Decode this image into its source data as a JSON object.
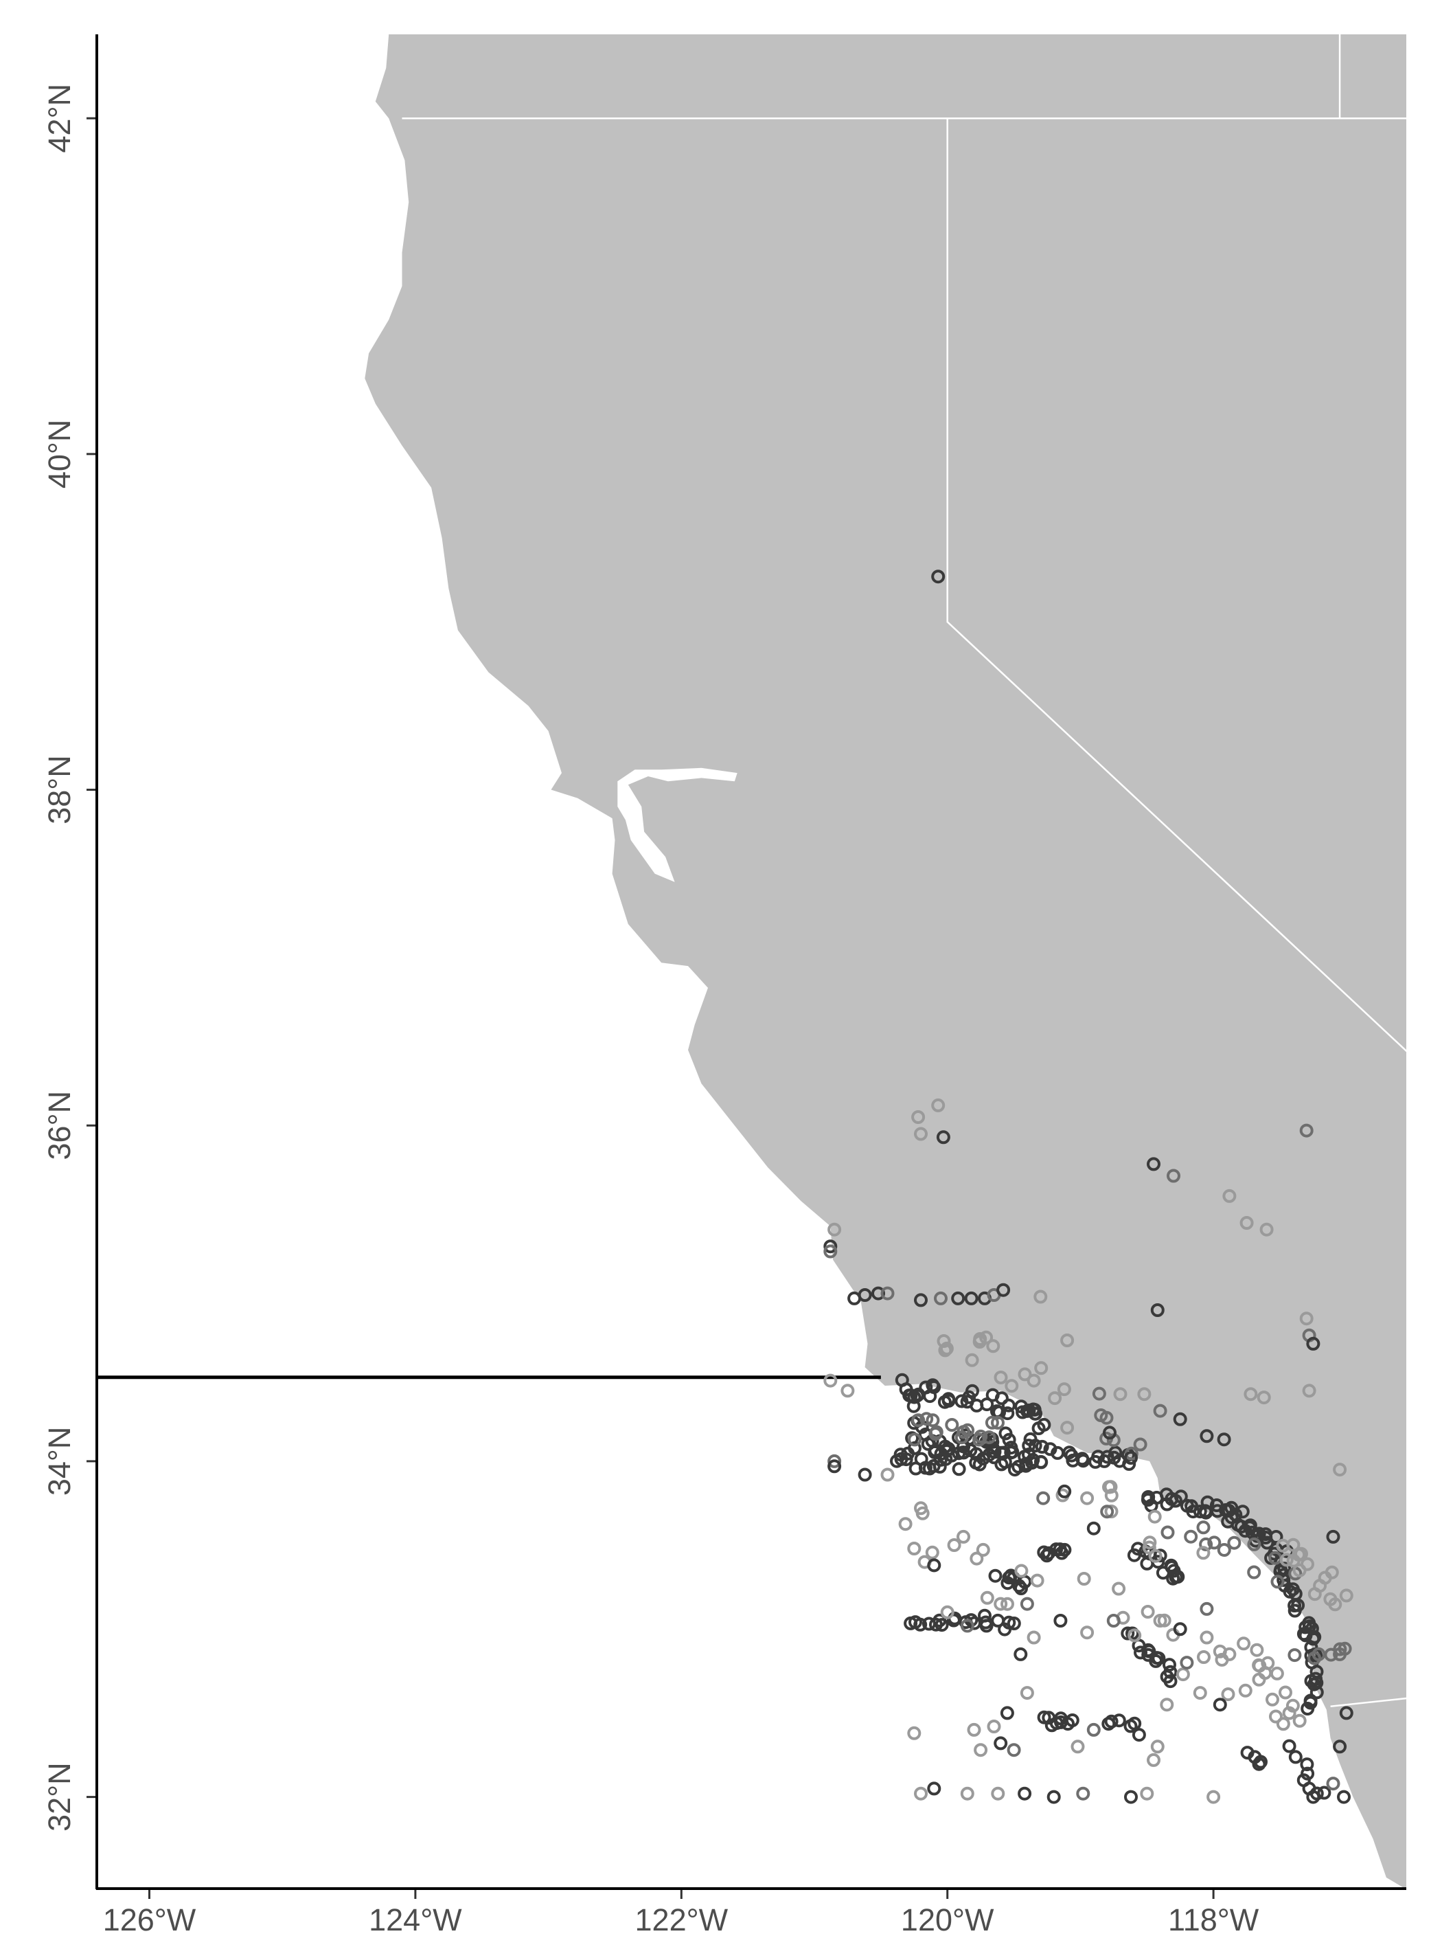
{
  "map": {
    "projection": "geographic (lon/lat)",
    "xlim": [
      -126.4,
      -116.55
    ],
    "ylim": [
      31.45,
      42.5
    ],
    "land_color": "#c0c0c0",
    "ocean_color": "#ffffff",
    "border_color": "#ffffff",
    "point_colors": [
      "#3a3a3a",
      "#6e6e6e",
      "#9a9a9a"
    ],
    "x_ticks": [
      {
        "value": -126,
        "label": "126°W"
      },
      {
        "value": -124,
        "label": "124°W"
      },
      {
        "value": -122,
        "label": "122°W"
      },
      {
        "value": -120,
        "label": "120°W"
      },
      {
        "value": -118,
        "label": "118°W"
      }
    ],
    "y_ticks": [
      {
        "value": 32,
        "label": "32°N"
      },
      {
        "value": 34,
        "label": "34°N"
      },
      {
        "value": 36,
        "label": "36°N"
      },
      {
        "value": 38,
        "label": "38°N"
      },
      {
        "value": 40,
        "label": "40°N"
      },
      {
        "value": 42,
        "label": "42°N"
      }
    ],
    "reference_line": {
      "lat": 34.5,
      "lon_range": [
        -126.4,
        -120.5
      ]
    },
    "points": [
      {
        "lon": -120.07,
        "lat": 39.27,
        "tone": 0
      },
      {
        "lon": -120.07,
        "lat": 36.12,
        "tone": 2
      },
      {
        "lon": -120.22,
        "lat": 36.05,
        "tone": 2
      },
      {
        "lon": -120.2,
        "lat": 35.95,
        "tone": 2
      },
      {
        "lon": -120.03,
        "lat": 35.93,
        "tone": 0
      },
      {
        "lon": -118.45,
        "lat": 35.77,
        "tone": 0
      },
      {
        "lon": -118.3,
        "lat": 35.7,
        "tone": 1
      },
      {
        "lon": -117.88,
        "lat": 35.58,
        "tone": 2
      },
      {
        "lon": -117.75,
        "lat": 35.42,
        "tone": 2
      },
      {
        "lon": -117.6,
        "lat": 35.38,
        "tone": 2
      },
      {
        "lon": -117.3,
        "lat": 35.97,
        "tone": 1
      },
      {
        "lon": -120.85,
        "lat": 35.38,
        "tone": 2
      },
      {
        "lon": -120.88,
        "lat": 35.28,
        "tone": 0
      },
      {
        "lon": -120.88,
        "lat": 35.25,
        "tone": 1
      },
      {
        "lon": -120.7,
        "lat": 34.97,
        "tone": 0
      },
      {
        "lon": -120.62,
        "lat": 34.99,
        "tone": 0
      },
      {
        "lon": -120.52,
        "lat": 35.0,
        "tone": 0
      },
      {
        "lon": -120.45,
        "lat": 35.0,
        "tone": 1
      },
      {
        "lon": -120.2,
        "lat": 34.96,
        "tone": 0
      },
      {
        "lon": -120.05,
        "lat": 34.97,
        "tone": 1
      },
      {
        "lon": -119.92,
        "lat": 34.97,
        "tone": 0
      },
      {
        "lon": -119.82,
        "lat": 34.97,
        "tone": 0
      },
      {
        "lon": -119.72,
        "lat": 34.97,
        "tone": 0
      },
      {
        "lon": -119.65,
        "lat": 34.99,
        "tone": 1
      },
      {
        "lon": -119.58,
        "lat": 35.02,
        "tone": 0
      },
      {
        "lon": -119.3,
        "lat": 34.98,
        "tone": 2
      },
      {
        "lon": -119.1,
        "lat": 34.72,
        "tone": 2
      },
      {
        "lon": -118.42,
        "lat": 34.9,
        "tone": 0
      },
      {
        "lon": -117.3,
        "lat": 34.85,
        "tone": 2
      },
      {
        "lon": -117.28,
        "lat": 34.75,
        "tone": 1
      },
      {
        "lon": -117.25,
        "lat": 34.7,
        "tone": 0
      },
      {
        "lon": -117.28,
        "lat": 34.42,
        "tone": 2
      },
      {
        "lon": -120.88,
        "lat": 34.48,
        "tone": 2
      },
      {
        "lon": -120.75,
        "lat": 34.42,
        "tone": 2
      },
      {
        "lon": -118.78,
        "lat": 34.17,
        "tone": 0
      },
      {
        "lon": -118.55,
        "lat": 34.1,
        "tone": 1
      },
      {
        "lon": -118.4,
        "lat": 34.3,
        "tone": 1
      },
      {
        "lon": -118.25,
        "lat": 34.25,
        "tone": 0
      },
      {
        "lon": -118.05,
        "lat": 34.15,
        "tone": 0
      },
      {
        "lon": -117.92,
        "lat": 34.13,
        "tone": 0
      },
      {
        "lon": -118.7,
        "lat": 34.4,
        "tone": 2
      },
      {
        "lon": -118.52,
        "lat": 34.4,
        "tone": 2
      },
      {
        "lon": -117.72,
        "lat": 34.4,
        "tone": 2
      },
      {
        "lon": -117.62,
        "lat": 34.38,
        "tone": 2
      },
      {
        "lon": -120.85,
        "lat": 34.0,
        "tone": 1
      },
      {
        "lon": -120.85,
        "lat": 33.97,
        "tone": 0
      },
      {
        "lon": -120.62,
        "lat": 33.92,
        "tone": 0
      },
      {
        "lon": -120.45,
        "lat": 33.92,
        "tone": 2
      },
      {
        "lon": -120.2,
        "lat": 33.72,
        "tone": 2
      },
      {
        "lon": -120.25,
        "lat": 33.48,
        "tone": 2
      },
      {
        "lon": -120.1,
        "lat": 33.38,
        "tone": 0
      },
      {
        "lon": -119.88,
        "lat": 33.55,
        "tone": 2
      },
      {
        "lon": -119.78,
        "lat": 33.42,
        "tone": 2
      },
      {
        "lon": -119.28,
        "lat": 33.78,
        "tone": 1
      },
      {
        "lon": -119.12,
        "lat": 33.82,
        "tone": 0
      },
      {
        "lon": -118.95,
        "lat": 33.78,
        "tone": 2
      },
      {
        "lon": -118.8,
        "lat": 33.7,
        "tone": 1
      },
      {
        "lon": -118.9,
        "lat": 33.6,
        "tone": 0
      },
      {
        "lon": -120.0,
        "lat": 33.1,
        "tone": 2
      },
      {
        "lon": -119.85,
        "lat": 33.02,
        "tone": 1
      },
      {
        "lon": -119.72,
        "lat": 33.08,
        "tone": 0
      },
      {
        "lon": -119.6,
        "lat": 33.15,
        "tone": 2
      },
      {
        "lon": -119.4,
        "lat": 33.15,
        "tone": 1
      },
      {
        "lon": -119.35,
        "lat": 32.95,
        "tone": 2
      },
      {
        "lon": -119.15,
        "lat": 33.05,
        "tone": 0
      },
      {
        "lon": -118.95,
        "lat": 32.98,
        "tone": 2
      },
      {
        "lon": -118.75,
        "lat": 33.05,
        "tone": 1
      },
      {
        "lon": -118.4,
        "lat": 33.05,
        "tone": 2
      },
      {
        "lon": -118.25,
        "lat": 33.0,
        "tone": 0
      },
      {
        "lon": -118.05,
        "lat": 33.12,
        "tone": 1
      },
      {
        "lon": -118.05,
        "lat": 32.95,
        "tone": 2
      },
      {
        "lon": -117.88,
        "lat": 32.85,
        "tone": 2
      },
      {
        "lon": -118.2,
        "lat": 32.8,
        "tone": 1
      },
      {
        "lon": -118.35,
        "lat": 32.55,
        "tone": 2
      },
      {
        "lon": -118.1,
        "lat": 32.62,
        "tone": 2
      },
      {
        "lon": -117.95,
        "lat": 32.55,
        "tone": 0
      },
      {
        "lon": -119.45,
        "lat": 32.85,
        "tone": 0
      },
      {
        "lon": -119.4,
        "lat": 32.62,
        "tone": 2
      },
      {
        "lon": -119.55,
        "lat": 32.5,
        "tone": 0
      },
      {
        "lon": -119.65,
        "lat": 32.42,
        "tone": 2
      },
      {
        "lon": -119.8,
        "lat": 32.4,
        "tone": 2
      },
      {
        "lon": -119.6,
        "lat": 32.32,
        "tone": 0
      },
      {
        "lon": -119.75,
        "lat": 32.28,
        "tone": 2
      },
      {
        "lon": -119.5,
        "lat": 32.28,
        "tone": 1
      },
      {
        "lon": -120.25,
        "lat": 32.38,
        "tone": 2
      },
      {
        "lon": -119.02,
        "lat": 32.3,
        "tone": 2
      },
      {
        "lon": -118.9,
        "lat": 32.4,
        "tone": 1
      },
      {
        "lon": -118.42,
        "lat": 32.3,
        "tone": 2
      },
      {
        "lon": -118.45,
        "lat": 32.22,
        "tone": 2
      },
      {
        "lon": -120.2,
        "lat": 32.02,
        "tone": 2
      },
      {
        "lon": -120.1,
        "lat": 32.05,
        "tone": 0
      },
      {
        "lon": -119.85,
        "lat": 32.02,
        "tone": 2
      },
      {
        "lon": -119.62,
        "lat": 32.02,
        "tone": 2
      },
      {
        "lon": -119.42,
        "lat": 32.02,
        "tone": 0
      },
      {
        "lon": -119.2,
        "lat": 32.0,
        "tone": 0
      },
      {
        "lon": -118.98,
        "lat": 32.02,
        "tone": 1
      },
      {
        "lon": -118.62,
        "lat": 32.0,
        "tone": 0
      },
      {
        "lon": -118.5,
        "lat": 32.02,
        "tone": 2
      },
      {
        "lon": -118.0,
        "lat": 32.0,
        "tone": 2
      },
      {
        "lon": -117.32,
        "lat": 32.1,
        "tone": 0
      },
      {
        "lon": -117.28,
        "lat": 32.05,
        "tone": 0
      },
      {
        "lon": -117.25,
        "lat": 32.0,
        "tone": 0
      },
      {
        "lon": -117.02,
        "lat": 32.0,
        "tone": 0
      },
      {
        "lon": -117.1,
        "lat": 32.08,
        "tone": 1
      },
      {
        "lon": -117.05,
        "lat": 33.95,
        "tone": 2
      },
      {
        "lon": -117.0,
        "lat": 33.2,
        "tone": 2
      },
      {
        "lon": -117.05,
        "lat": 32.85,
        "tone": 1
      },
      {
        "lon": -117.1,
        "lat": 33.55,
        "tone": 0
      },
      {
        "lon": -117.0,
        "lat": 32.5,
        "tone": 0
      },
      {
        "lon": -117.05,
        "lat": 32.3,
        "tone": 0
      },
      {
        "lon": -118.82,
        "lat": 34.0,
        "tone": 0
      },
      {
        "lon": -118.62,
        "lat": 34.02,
        "tone": 0
      },
      {
        "lon": -119.1,
        "lat": 34.2,
        "tone": 2
      },
      {
        "lon": -119.35,
        "lat": 34.48,
        "tone": 2
      }
    ],
    "tracks": [
      {
        "from": [
          -120.3,
          34.45
        ],
        "to": [
          -119.3,
          34.28
        ],
        "n": 28,
        "spread": 0.05,
        "tone": 0
      },
      {
        "from": [
          -119.3,
          34.3
        ],
        "to": [
          -119.38,
          34.0
        ],
        "n": 10,
        "spread": 0.05,
        "tone": 0
      },
      {
        "from": [
          -120.3,
          34.45
        ],
        "to": [
          -120.22,
          34.2
        ],
        "n": 8,
        "spread": 0.05,
        "tone": 0
      },
      {
        "from": [
          -120.35,
          34.02
        ],
        "to": [
          -119.3,
          34.02
        ],
        "n": 40,
        "spread": 0.07,
        "tone": 0
      },
      {
        "from": [
          -120.3,
          34.1
        ],
        "to": [
          -119.5,
          34.1
        ],
        "n": 25,
        "spread": 0.07,
        "tone": 0
      },
      {
        "from": [
          -120.25,
          34.2
        ],
        "to": [
          -119.6,
          34.18
        ],
        "n": 15,
        "spread": 0.07,
        "tone": 1
      },
      {
        "from": [
          -119.25,
          34.05
        ],
        "to": [
          -118.6,
          34.02
        ],
        "n": 16,
        "spread": 0.04,
        "tone": 0
      },
      {
        "from": [
          -118.9,
          34.4
        ],
        "to": [
          -118.65,
          34.02
        ],
        "n": 6,
        "spread": 0.06,
        "tone": 1
      },
      {
        "from": [
          -118.5,
          33.78
        ],
        "to": [
          -117.9,
          33.7
        ],
        "n": 20,
        "spread": 0.04,
        "tone": 0
      },
      {
        "from": [
          -117.9,
          33.7
        ],
        "to": [
          -117.55,
          33.5
        ],
        "n": 18,
        "spread": 0.05,
        "tone": 0
      },
      {
        "from": [
          -117.55,
          33.5
        ],
        "to": [
          -117.3,
          33.05
        ],
        "n": 18,
        "spread": 0.06,
        "tone": 0
      },
      {
        "from": [
          -117.3,
          33.05
        ],
        "to": [
          -117.25,
          32.55
        ],
        "n": 20,
        "spread": 0.05,
        "tone": 0
      },
      {
        "from": [
          -118.25,
          33.6
        ],
        "to": [
          -117.35,
          33.35
        ],
        "n": 12,
        "spread": 0.1,
        "tone": 1
      },
      {
        "from": [
          -118.55,
          33.45
        ],
        "to": [
          -118.25,
          33.3
        ],
        "n": 14,
        "spread": 0.05,
        "tone": 0
      },
      {
        "from": [
          -118.6,
          32.95
        ],
        "to": [
          -118.3,
          32.72
        ],
        "n": 14,
        "spread": 0.05,
        "tone": 0
      },
      {
        "from": [
          -119.6,
          33.3
        ],
        "to": [
          -119.4,
          33.25
        ],
        "n": 8,
        "spread": 0.04,
        "tone": 0
      },
      {
        "from": [
          -119.3,
          33.45
        ],
        "to": [
          -119.1,
          33.45
        ],
        "n": 7,
        "spread": 0.03,
        "tone": 0
      },
      {
        "from": [
          -120.3,
          33.05
        ],
        "to": [
          -119.5,
          33.02
        ],
        "n": 18,
        "spread": 0.03,
        "tone": 0
      },
      {
        "from": [
          -119.3,
          32.45
        ],
        "to": [
          -119.05,
          32.45
        ],
        "n": 8,
        "spread": 0.03,
        "tone": 0
      },
      {
        "from": [
          -118.8,
          32.45
        ],
        "to": [
          -118.55,
          32.4
        ],
        "n": 6,
        "spread": 0.03,
        "tone": 0
      },
      {
        "from": [
          -117.75,
          32.25
        ],
        "to": [
          -117.65,
          32.2
        ],
        "n": 4,
        "spread": 0.03,
        "tone": 0
      },
      {
        "from": [
          -117.35,
          32.85
        ],
        "to": [
          -117.0,
          32.85
        ],
        "n": 6,
        "spread": 0.04,
        "tone": 1
      },
      {
        "from": [
          -117.45,
          33.5
        ],
        "to": [
          -117.05,
          33.25
        ],
        "n": 14,
        "spread": 0.12,
        "tone": 2
      },
      {
        "from": [
          -117.7,
          32.95
        ],
        "to": [
          -117.4,
          32.4
        ],
        "n": 14,
        "spread": 0.12,
        "tone": 2
      },
      {
        "from": [
          -120.1,
          34.8
        ],
        "to": [
          -119.2,
          34.45
        ],
        "n": 14,
        "spread": 0.12,
        "tone": 2
      },
      {
        "from": [
          -119.0,
          33.9
        ],
        "to": [
          -118.2,
          33.4
        ],
        "n": 10,
        "spread": 0.15,
        "tone": 2
      },
      {
        "from": [
          -120.4,
          33.6
        ],
        "to": [
          -119.3,
          33.2
        ],
        "n": 10,
        "spread": 0.15,
        "tone": 2
      },
      {
        "from": [
          -118.9,
          33.2
        ],
        "to": [
          -117.6,
          32.6
        ],
        "n": 14,
        "spread": 0.15,
        "tone": 2
      },
      {
        "from": [
          -117.4,
          32.3
        ],
        "to": [
          -117.2,
          32.0
        ],
        "n": 6,
        "spread": 0.04,
        "tone": 0
      }
    ]
  }
}
